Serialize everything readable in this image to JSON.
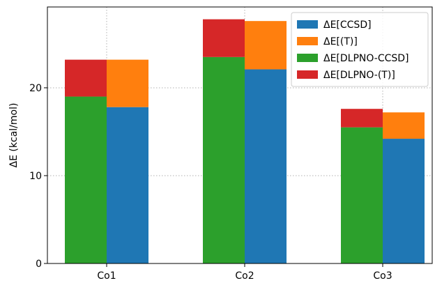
{
  "chart_data": {
    "type": "bar",
    "stacked": true,
    "categories": [
      "Co1",
      "Co2",
      "Co3"
    ],
    "ylabel": "ΔE (kcal/mol)",
    "xlabel": "",
    "ylim": [
      0,
      29.2
    ],
    "yticks": [
      0,
      10,
      20
    ],
    "grid": true,
    "legend_position": "top-right",
    "stacks": [
      {
        "group": "CCSD",
        "series": [
          {
            "name": "ΔE[CCSD]",
            "color": "#1f77b4",
            "values": [
              17.8,
              22.1,
              14.2
            ]
          },
          {
            "name": "ΔE[(T)]",
            "color": "#ff7f0e",
            "values": [
              5.4,
              5.5,
              3.0
            ]
          }
        ]
      },
      {
        "group": "DLPNO",
        "series": [
          {
            "name": "ΔE[DLPNO-CCSD]",
            "color": "#2ca02c",
            "values": [
              19.0,
              23.5,
              15.5
            ]
          },
          {
            "name": "ΔE[DLPNO-(T)]",
            "color": "#d62728",
            "values": [
              4.2,
              4.3,
              2.1
            ]
          }
        ]
      }
    ],
    "legend": [
      "ΔE[CCSD]",
      "ΔE[(T)]",
      "ΔE[DLPNO-CCSD]",
      "ΔE[DLPNO-(T)]"
    ],
    "legend_colors": [
      "#1f77b4",
      "#ff7f0e",
      "#2ca02c",
      "#d62728"
    ]
  }
}
